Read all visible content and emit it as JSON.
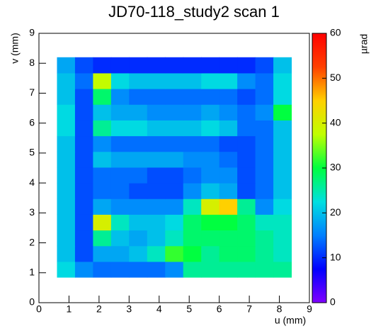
{
  "chart_data": {
    "type": "heatmap",
    "title": "JD70-118_study2 scan 1",
    "x_label": "u (mm)",
    "y_label": "v (mm)",
    "z_label": "µrad",
    "xlim": [
      0,
      9
    ],
    "ylim": [
      0,
      9
    ],
    "zlim": [
      0,
      60
    ],
    "xticks": [
      0,
      1,
      2,
      3,
      4,
      5,
      6,
      7,
      8,
      9
    ],
    "yticks": [
      0,
      1,
      2,
      3,
      4,
      5,
      6,
      7,
      8,
      9
    ],
    "zticks": [
      0,
      10,
      20,
      30,
      40,
      50,
      60
    ],
    "xbins": [
      0.6,
      1.2,
      1.8,
      2.4,
      3.0,
      3.6,
      4.2,
      4.8,
      5.4,
      6.0,
      6.6,
      7.2,
      7.8,
      8.4
    ],
    "ybins": [
      0.85,
      1.375,
      1.9,
      2.425,
      2.95,
      3.475,
      4.0,
      4.525,
      5.05,
      5.575,
      6.1,
      6.625,
      7.15,
      7.675,
      8.2
    ],
    "z": [
      [
        22,
        16,
        14,
        14,
        14,
        14,
        16,
        26,
        26,
        26,
        26,
        26,
        26
      ],
      [
        20,
        12,
        18,
        18,
        20,
        24,
        32,
        30,
        26,
        28,
        28,
        26,
        24
      ],
      [
        20,
        12,
        26,
        20,
        18,
        20,
        24,
        28,
        28,
        28,
        28,
        26,
        24
      ],
      [
        20,
        12,
        40,
        24,
        20,
        20,
        22,
        28,
        30,
        30,
        28,
        24,
        24
      ],
      [
        20,
        12,
        18,
        16,
        16,
        16,
        16,
        24,
        40,
        45,
        26,
        16,
        22
      ],
      [
        20,
        12,
        14,
        14,
        12,
        12,
        12,
        16,
        20,
        18,
        12,
        14,
        20
      ],
      [
        20,
        12,
        14,
        14,
        14,
        12,
        12,
        14,
        16,
        16,
        12,
        14,
        20
      ],
      [
        20,
        12,
        20,
        18,
        18,
        18,
        18,
        16,
        16,
        14,
        12,
        14,
        20
      ],
      [
        20,
        12,
        16,
        14,
        14,
        14,
        14,
        14,
        14,
        12,
        12,
        14,
        20
      ],
      [
        22,
        12,
        26,
        22,
        22,
        20,
        20,
        20,
        22,
        20,
        14,
        14,
        20
      ],
      [
        22,
        12,
        20,
        18,
        18,
        16,
        16,
        16,
        18,
        16,
        14,
        16,
        30
      ],
      [
        20,
        12,
        28,
        16,
        14,
        14,
        14,
        14,
        14,
        14,
        12,
        14,
        22
      ],
      [
        20,
        14,
        38,
        22,
        20,
        20,
        20,
        20,
        22,
        22,
        16,
        14,
        22
      ],
      [
        18,
        12,
        10,
        10,
        10,
        10,
        10,
        10,
        10,
        10,
        10,
        12,
        20
      ]
    ],
    "colormap": [
      "#8000ff",
      "#0000ff",
      "#0080ff",
      "#00e0e0",
      "#00ff40",
      "#c0ff00",
      "#ffd000",
      "#ff4000",
      "#ff0000"
    ]
  }
}
